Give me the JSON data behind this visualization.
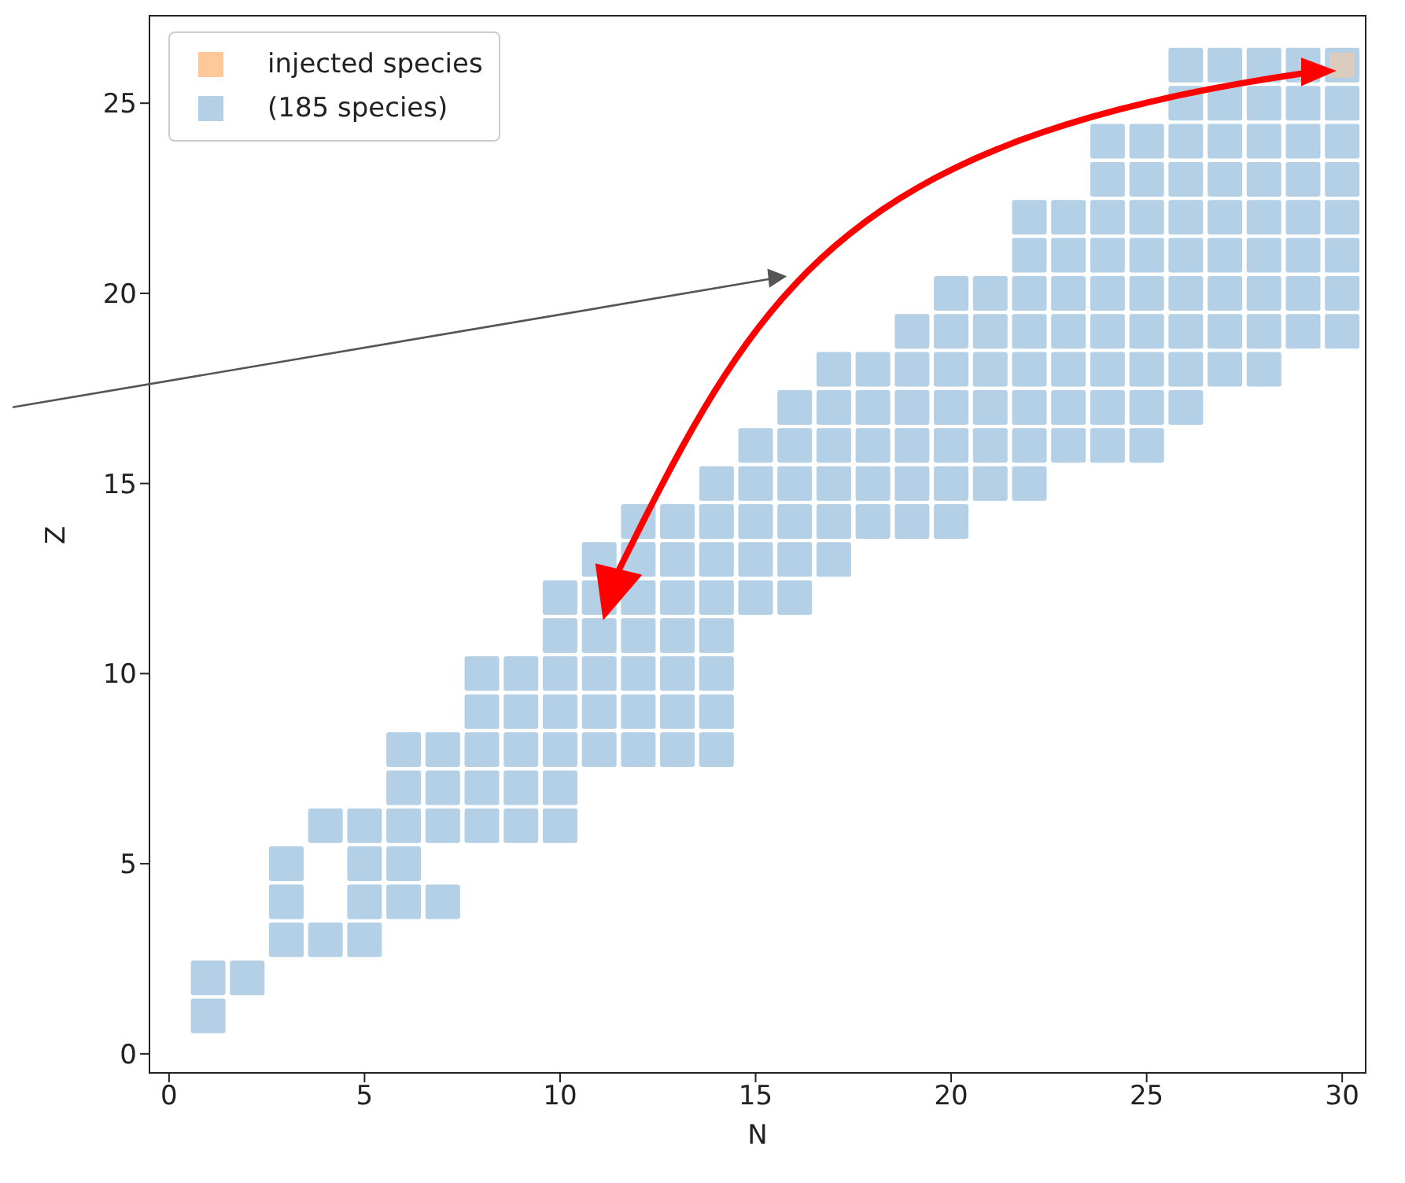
{
  "chart_data": {
    "type": "scatter",
    "xlabel": "N",
    "ylabel": "Z",
    "xlim": [
      -0.5,
      30.6
    ],
    "ylim": [
      -0.5,
      27.3
    ],
    "xticks": [
      0,
      5,
      10,
      15,
      20,
      25,
      30
    ],
    "yticks": [
      0,
      5,
      10,
      15,
      20,
      25
    ],
    "marker": "square",
    "legend": "top left",
    "grid": false,
    "series": [
      {
        "name": "injected species",
        "color": "#fdc89a",
        "x": [
          30
        ],
        "values": [
          26
        ]
      },
      {
        "name": "(185 species)",
        "color": "#b3d0e6",
        "x": [
          1,
          1,
          2,
          3,
          3,
          3,
          4,
          4,
          5,
          5,
          5,
          5,
          6,
          6,
          6,
          6,
          6,
          7,
          7,
          7,
          7,
          8,
          8,
          8,
          8,
          8,
          9,
          9,
          9,
          9,
          9,
          10,
          10,
          10,
          10,
          10,
          10,
          10,
          11,
          11,
          11,
          11,
          11,
          11,
          12,
          12,
          12,
          12,
          12,
          12,
          12,
          13,
          13,
          13,
          13,
          13,
          13,
          13,
          14,
          14,
          14,
          14,
          14,
          14,
          14,
          14,
          15,
          15,
          15,
          15,
          15,
          16,
          16,
          16,
          16,
          16,
          16,
          17,
          17,
          17,
          17,
          17,
          17,
          18,
          18,
          18,
          18,
          18,
          19,
          19,
          19,
          19,
          19,
          19,
          20,
          20,
          20,
          20,
          20,
          20,
          20,
          21,
          21,
          21,
          21,
          21,
          21,
          22,
          22,
          22,
          22,
          22,
          22,
          22,
          22,
          23,
          23,
          23,
          23,
          23,
          23,
          23,
          24,
          24,
          24,
          24,
          24,
          24,
          24,
          24,
          24,
          25,
          25,
          25,
          25,
          25,
          25,
          25,
          25,
          25,
          26,
          26,
          26,
          26,
          26,
          26,
          26,
          26,
          26,
          26,
          27,
          27,
          27,
          27,
          27,
          27,
          27,
          27,
          27,
          28,
          28,
          28,
          28,
          28,
          28,
          28,
          28,
          28,
          29,
          29,
          29,
          29,
          29,
          29,
          29,
          29,
          30,
          30,
          30,
          30,
          30,
          30,
          30,
          30
        ],
        "values": [
          1,
          2,
          2,
          3,
          4,
          5,
          3,
          6,
          3,
          4,
          5,
          6,
          4,
          5,
          6,
          7,
          8,
          4,
          6,
          7,
          8,
          6,
          7,
          8,
          9,
          10,
          6,
          7,
          8,
          9,
          10,
          6,
          7,
          8,
          9,
          10,
          11,
          12,
          8,
          9,
          10,
          11,
          12,
          13,
          8,
          9,
          10,
          11,
          12,
          13,
          14,
          8,
          9,
          10,
          11,
          12,
          13,
          14,
          8,
          9,
          10,
          11,
          12,
          13,
          14,
          15,
          12,
          13,
          14,
          15,
          16,
          12,
          13,
          14,
          15,
          16,
          17,
          13,
          14,
          15,
          16,
          17,
          18,
          14,
          15,
          16,
          17,
          18,
          14,
          15,
          16,
          17,
          18,
          19,
          14,
          15,
          16,
          17,
          18,
          19,
          20,
          15,
          16,
          17,
          18,
          19,
          20,
          15,
          16,
          17,
          18,
          19,
          20,
          21,
          22,
          16,
          17,
          18,
          19,
          20,
          21,
          22,
          16,
          17,
          18,
          19,
          20,
          21,
          22,
          23,
          24,
          16,
          17,
          18,
          19,
          20,
          21,
          22,
          23,
          24,
          17,
          18,
          19,
          20,
          21,
          22,
          23,
          24,
          25,
          26,
          18,
          19,
          20,
          21,
          22,
          23,
          24,
          25,
          26,
          18,
          19,
          20,
          21,
          22,
          23,
          24,
          25,
          26,
          19,
          20,
          21,
          22,
          23,
          24,
          25,
          26,
          19,
          20,
          21,
          22,
          23,
          24,
          25,
          26
        ]
      }
    ]
  }
}
